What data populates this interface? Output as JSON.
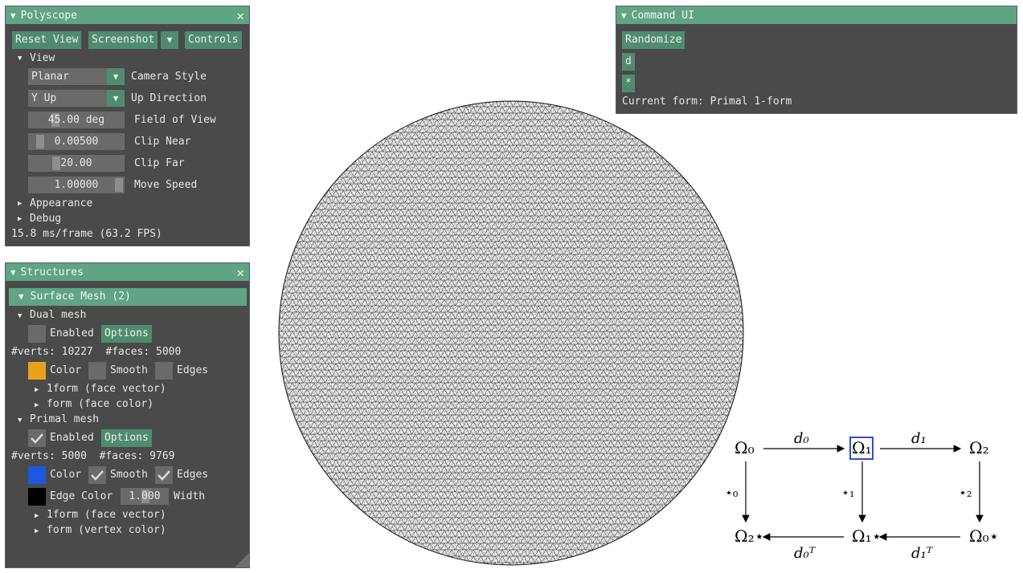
{
  "polyscope": {
    "title": "Polyscope",
    "buttons": {
      "reset_view": "Reset View",
      "screenshot": "Screenshot",
      "controls": "Controls"
    },
    "view_header": "View",
    "camera_style": {
      "value": "Planar",
      "label": "Camera Style"
    },
    "up_direction": {
      "value": "Y Up",
      "label": "Up Direction"
    },
    "field_of_view": {
      "value": "45.00 deg",
      "label": "Field of View"
    },
    "clip_near": {
      "value": "0.00500",
      "label": "Clip Near"
    },
    "clip_far": {
      "value": "20.00",
      "label": "Clip Far"
    },
    "move_speed": {
      "value": "1.00000",
      "label": "Move Speed"
    },
    "appearance": "Appearance",
    "debug": "Debug",
    "fps": "15.8 ms/frame (63.2 FPS)"
  },
  "structures": {
    "title": "Structures",
    "surface_mesh_header": "Surface Mesh (2)",
    "dual": {
      "name": "Dual mesh",
      "enabled_label": "Enabled",
      "enabled": false,
      "options": "Options",
      "counts": "#verts: 10227  #faces: 5000",
      "color_label": "Color",
      "color": "#e8a21c",
      "smooth_label": "Smooth",
      "smooth": false,
      "edges_label": "Edges",
      "edges": false,
      "q1": "1form (face vector)",
      "q2": "form (face color)"
    },
    "primal": {
      "name": "Primal mesh",
      "enabled_label": "Enabled",
      "enabled": true,
      "options": "Options",
      "counts": "#verts: 5000  #faces: 9769",
      "color_label": "Color",
      "color": "#1e58e0",
      "smooth_label": "Smooth",
      "smooth": true,
      "edges_label": "Edges",
      "edges": true,
      "edge_color_label": "Edge Color",
      "edge_color": "#000000",
      "width_value": "1.000",
      "width_label": "Width",
      "q1": "1form (face vector)",
      "q2": "form (vertex color)"
    }
  },
  "command_ui": {
    "title": "Command UI",
    "randomize": "Randomize",
    "d_button": "d",
    "star_button": "*",
    "current_form": "Current form: Primal 1-form"
  },
  "diagram": {
    "omega0": "Ω₀",
    "omega1": "Ω₁",
    "omega2": "Ω₂",
    "omega2_star": "Ω₂⋆",
    "omega1_star": "Ω₁⋆",
    "omega0_star": "Ω₀⋆",
    "d0": "d₀",
    "d1": "d₁",
    "star0": "⋆₀",
    "star1": "⋆₁",
    "star2": "⋆₂",
    "d0T": "d₀ᵀ",
    "d1T": "d₁ᵀ",
    "highlight_color": "#2a4fd6"
  }
}
